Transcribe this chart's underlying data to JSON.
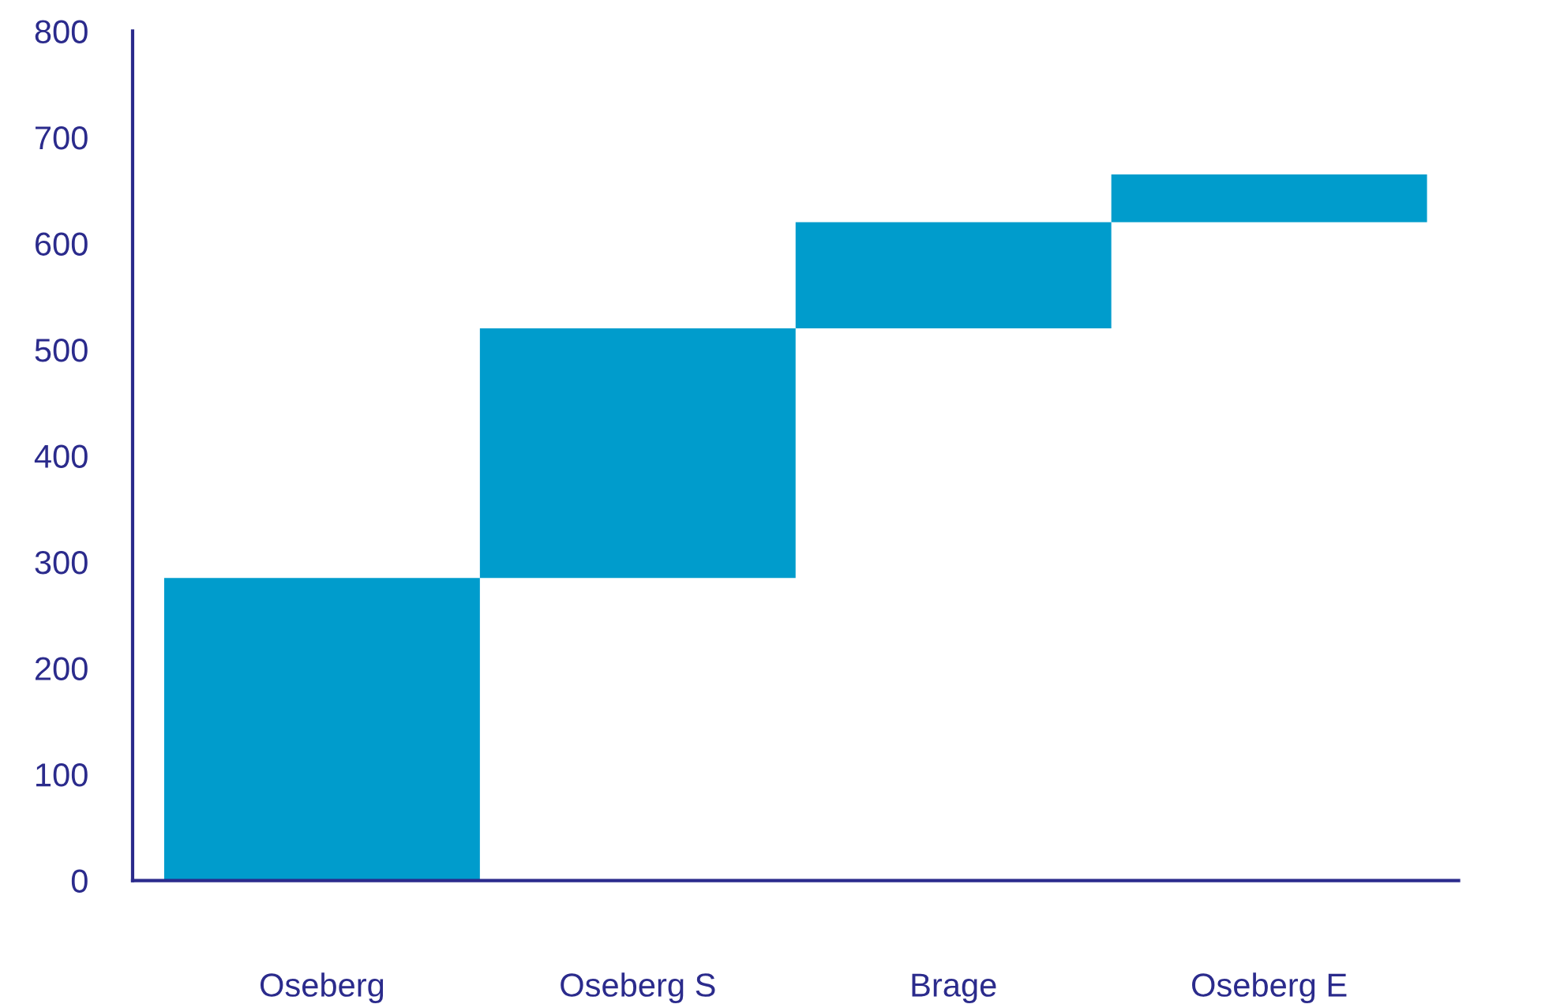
{
  "chart_data": {
    "type": "bar",
    "categories": [
      "Oseberg",
      "Oseberg S",
      "Brage",
      "Oseberg E"
    ],
    "values": [
      285,
      235,
      100,
      45
    ],
    "base": [
      0,
      285,
      520,
      620
    ],
    "color": "#009ccc",
    "ylim": [
      0,
      800
    ],
    "yticks": [
      0,
      100,
      200,
      300,
      400,
      500,
      600,
      700,
      800
    ],
    "grid": false,
    "legend": false
  }
}
